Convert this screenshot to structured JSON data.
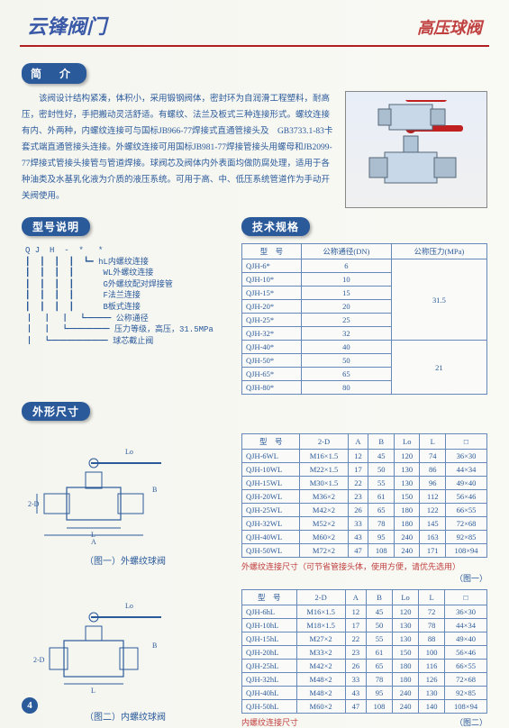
{
  "header": {
    "brand": "云锋阀门",
    "category": "高压球阀"
  },
  "sections": {
    "intro_title": "简　介",
    "model_title": "型号说明",
    "spec_title": "技术规格",
    "dim_title": "外形尺寸"
  },
  "intro_text": "该阀设计结构紧凑，体积小，采用锻钢阀体，密封环为自润滑工程塑料，耐高压，密封性好，手把搬动灵活舒适。有螺纹、法兰及板式三种连接形式。螺纹连接有内、外两种，内螺纹连接可与国标JB966-77焊接式直通管接头及　GB3733.1-83卡套式端直通管接头连接。外螺纹连接可用国标JB981-77焊接管接头用螺母和JB2099-77焊接式管接头接管与管道焊接。球阀芯及阀体内外表面均做防腐处理，适用于各种油类及水基乳化液为介质的液压系统。可用于高、中、低压系统管道作为手动开关阀使用。",
  "model_lines": [
    "Q J  H  -  *   *",
    "┃  ┃  ┃  ┃  ┗━ hL内螺纹连接",
    "┃  ┃  ┃  ┃      WL外螺纹连接",
    "┃  ┃  ┃  ┃      G外螺纹配对焊接管",
    "┃  ┃  ┃  ┃      F法兰连接",
    "┃  ┃  ┃  ┃      B板式连接",
    "┃  ┃  ┃  ┗━━━ 公称通径",
    "┃  ┃  ┗━━━━━ 压力等级，高压，31.5MPa",
    "┃  ┗━━━━━━━ 球芯截止阀"
  ],
  "spec_table": {
    "headers": [
      "型　号",
      "公称通径(DN)",
      "公称压力(MPa)"
    ],
    "rows": [
      [
        "QJH-6*",
        "6",
        ""
      ],
      [
        "QJH-10*",
        "10",
        ""
      ],
      [
        "QJH-15*",
        "15",
        ""
      ],
      [
        "QJH-20*",
        "20",
        "31.5"
      ],
      [
        "QJH-25*",
        "25",
        ""
      ],
      [
        "QJH-32*",
        "32",
        ""
      ],
      [
        "QJH-40*",
        "40",
        ""
      ],
      [
        "QJH-50*",
        "50",
        "21"
      ],
      [
        "QJH-65*",
        "65",
        ""
      ],
      [
        "QJH-80*",
        "80",
        ""
      ]
    ]
  },
  "dim1": {
    "caption": "（图一）外螺纹球阀",
    "headers": [
      "型　号",
      "2-D",
      "A",
      "B",
      "Lo",
      "L",
      "□"
    ],
    "rows": [
      [
        "QJH-6WL",
        "M16×1.5",
        "12",
        "45",
        "120",
        "74",
        "36×30"
      ],
      [
        "QJH-10WL",
        "M22×1.5",
        "17",
        "50",
        "130",
        "86",
        "44×34"
      ],
      [
        "QJH-15WL",
        "M30×1.5",
        "22",
        "55",
        "130",
        "96",
        "49×40"
      ],
      [
        "QJH-20WL",
        "M36×2",
        "23",
        "61",
        "150",
        "112",
        "56×46"
      ],
      [
        "QJH-25WL",
        "M42×2",
        "26",
        "65",
        "180",
        "122",
        "66×55"
      ],
      [
        "QJH-32WL",
        "M52×2",
        "33",
        "78",
        "180",
        "145",
        "72×68"
      ],
      [
        "QJH-40WL",
        "M60×2",
        "43",
        "95",
        "240",
        "163",
        "92×85"
      ],
      [
        "QJH-50WL",
        "M72×2",
        "47",
        "108",
        "240",
        "171",
        "108×94"
      ]
    ],
    "note": "外螺纹连接尺寸（可节省管接头体，使用方便，请优先选用）",
    "note_right": "（图一）"
  },
  "dim2": {
    "caption": "（图二）内螺纹球阀",
    "headers": [
      "型　号",
      "2-D",
      "A",
      "B",
      "Lo",
      "L",
      "□"
    ],
    "rows": [
      [
        "QJH-6hL",
        "M16×1.5",
        "12",
        "45",
        "120",
        "72",
        "36×30"
      ],
      [
        "QJH-10hL",
        "M18×1.5",
        "17",
        "50",
        "130",
        "78",
        "44×34"
      ],
      [
        "QJH-15hL",
        "M27×2",
        "22",
        "55",
        "130",
        "88",
        "49×40"
      ],
      [
        "QJH-20hL",
        "M33×2",
        "23",
        "61",
        "150",
        "100",
        "56×46"
      ],
      [
        "QJH-25hL",
        "M42×2",
        "26",
        "65",
        "180",
        "116",
        "66×55"
      ],
      [
        "QJH-32hL",
        "M48×2",
        "33",
        "78",
        "180",
        "126",
        "72×68"
      ],
      [
        "QJH-40hL",
        "M48×2",
        "43",
        "95",
        "240",
        "130",
        "92×85"
      ],
      [
        "QJH-50hL",
        "M60×2",
        "47",
        "108",
        "240",
        "140",
        "108×94"
      ]
    ],
    "note": "内螺纹连接尺寸",
    "note_right": "（图二）"
  },
  "page_number": "4",
  "colors": {
    "brand": "#3a5aa8",
    "accent": "#2a5a9a",
    "red": "#c04040",
    "line": "#b02020",
    "border": "#6688bb"
  }
}
